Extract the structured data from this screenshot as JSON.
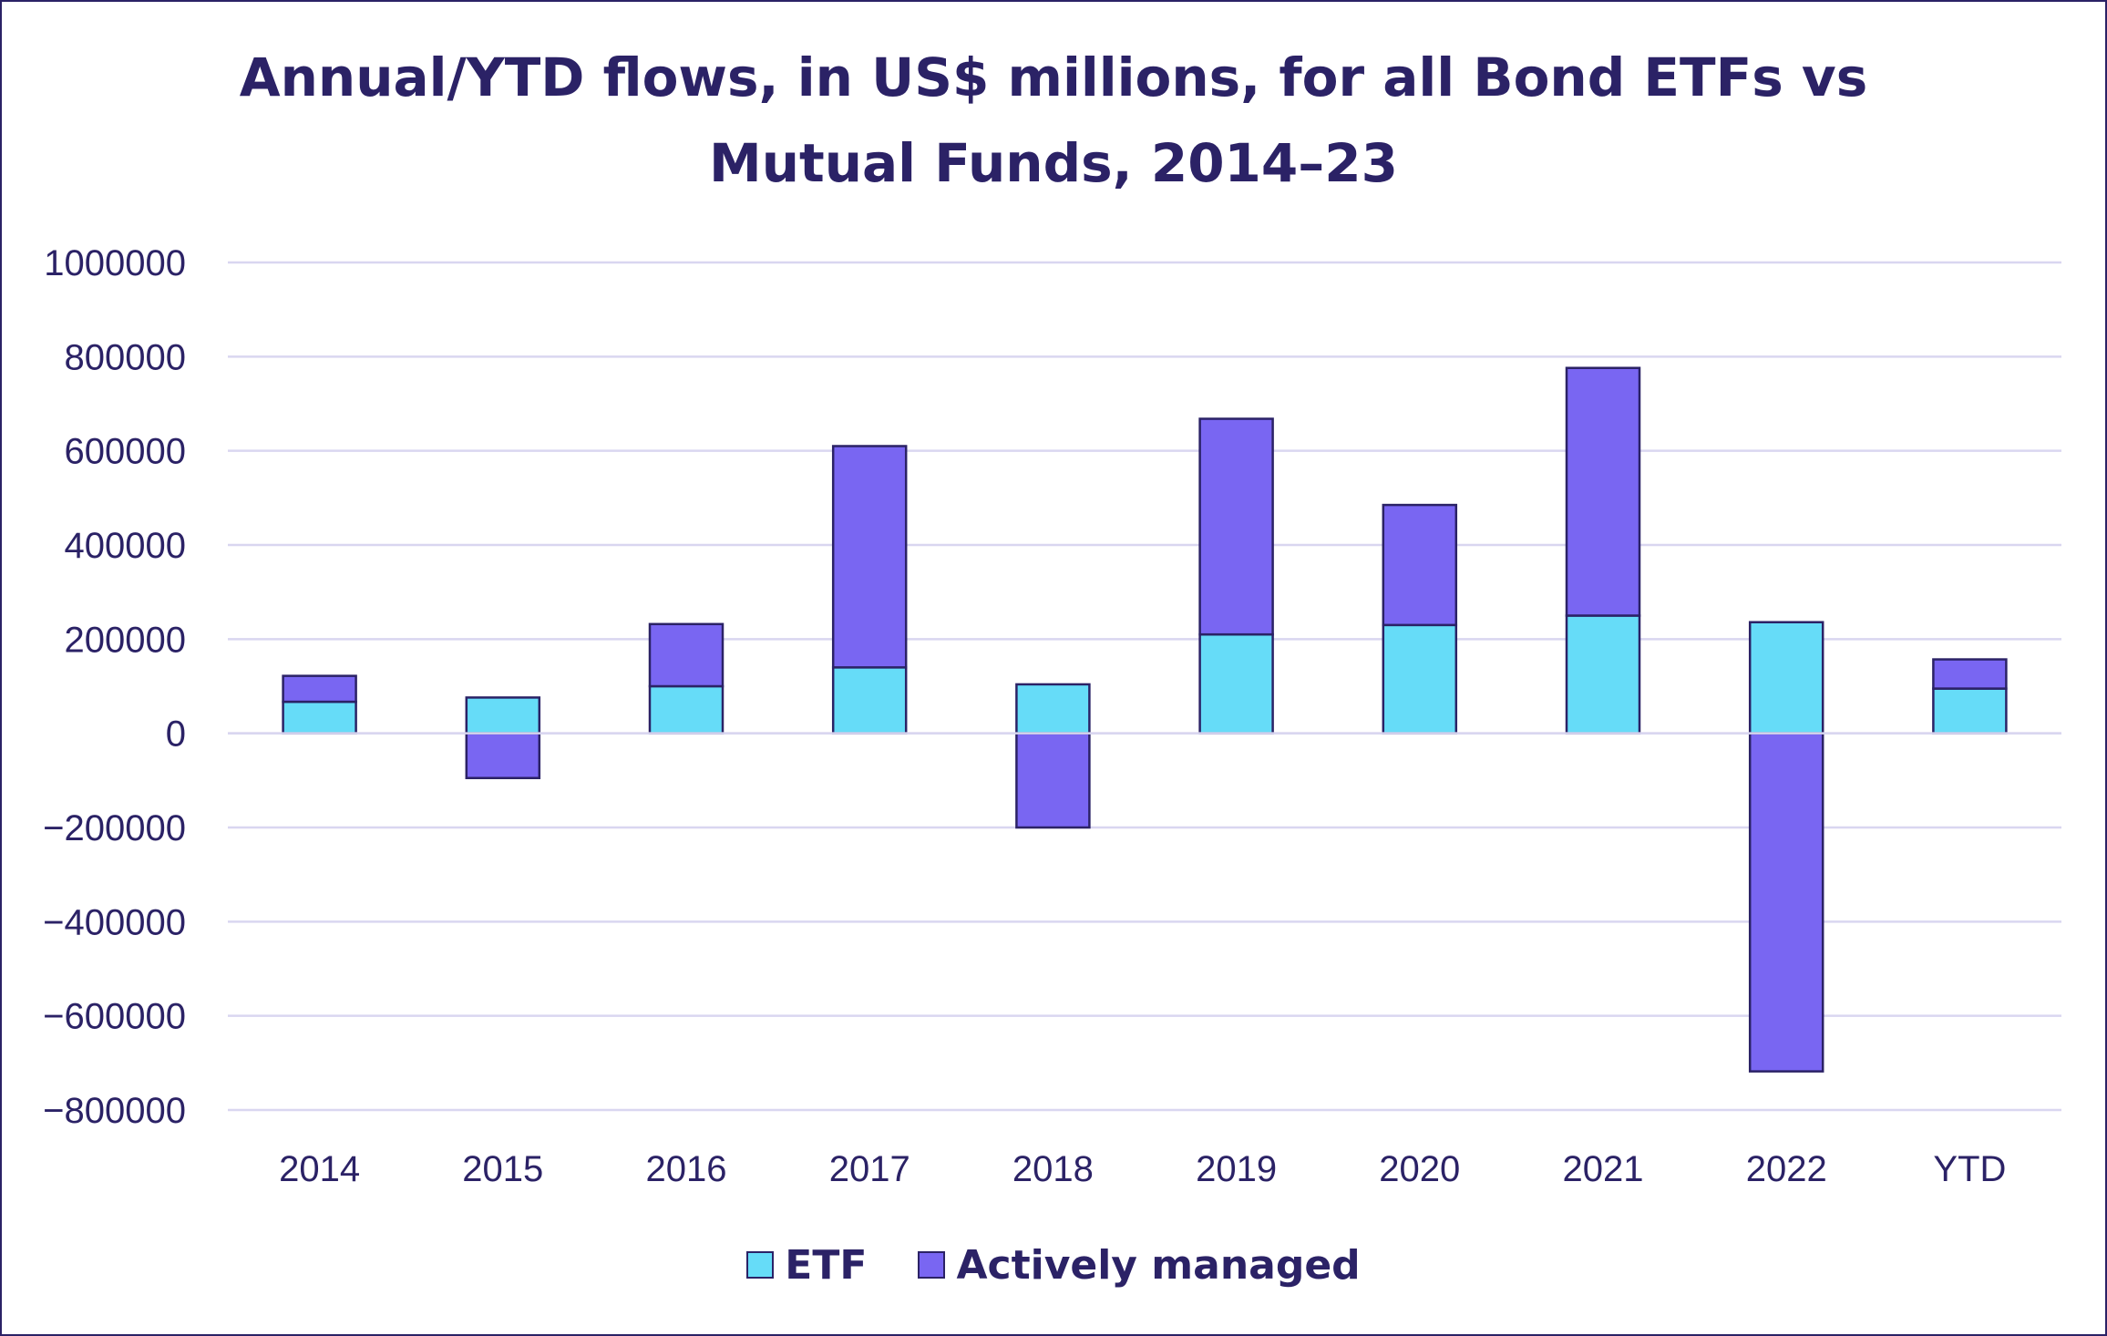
{
  "chart_data": {
    "type": "bar",
    "stacked": true,
    "title": "Annual/YTD flows, in US$ millions, for all Bond ETFs vs Mutual Funds, 2014–23",
    "title_lines": [
      "Annual/YTD flows, in US$ millions, for all Bond ETFs vs",
      "Mutual Funds, 2014–23"
    ],
    "categories": [
      "2014",
      "2015",
      "2016",
      "2017",
      "2018",
      "2019",
      "2020",
      "2021",
      "2022",
      "YTD"
    ],
    "series": [
      {
        "name": "ETF",
        "color": "#66dcf8",
        "values": [
          67000,
          76000,
          100000,
          140000,
          104000,
          210000,
          230000,
          250000,
          236000,
          95000
        ]
      },
      {
        "name": "Actively managed",
        "color": "#7966f2",
        "values": [
          55000,
          -95000,
          132000,
          470000,
          -200000,
          458000,
          255000,
          526000,
          -718000,
          62000
        ]
      }
    ],
    "y_ticks": [
      "1000000",
      "800000",
      "600000",
      "400000",
      "200000",
      "0",
      "−200000",
      "−400000",
      "−600000",
      "−800000"
    ],
    "ylim": [
      -800000,
      1000000
    ],
    "grid": true,
    "legend_position": "bottom",
    "xlabel": "",
    "ylabel": ""
  }
}
